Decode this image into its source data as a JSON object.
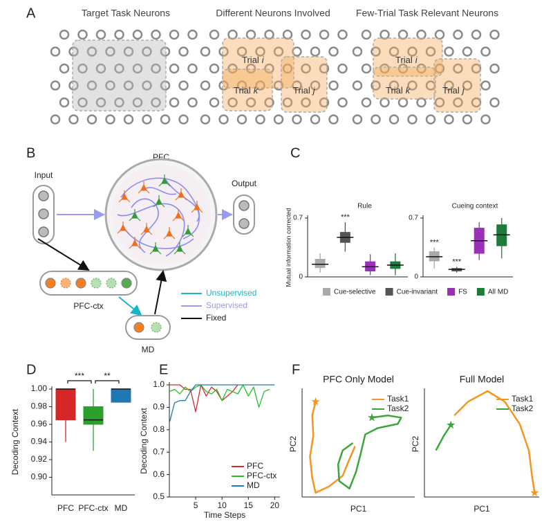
{
  "panel_labels": [
    "A",
    "B",
    "C",
    "D",
    "E",
    "F"
  ],
  "panel_a": {
    "grids": [
      {
        "title": "Target Task Neurons"
      },
      {
        "title": "Different Neurons Involved",
        "trials": [
          {
            "text": "Trial",
            "index": "i"
          },
          {
            "text": "Trial",
            "index": "k"
          },
          {
            "text": "Trial",
            "index": "j"
          }
        ]
      },
      {
        "title": "Few-Trial Task Relevant Neurons",
        "trials": [
          {
            "text": "Trial",
            "index": "i"
          },
          {
            "text": "Trial",
            "index": "k"
          },
          {
            "text": "Trial",
            "index": "j"
          }
        ]
      }
    ]
  },
  "panel_b": {
    "pfc": "PFC",
    "input": "Input",
    "output": "Output",
    "pfc_ctx": "PFC-ctx",
    "md": "MD",
    "legend": [
      "Unsupervised",
      "Supervised",
      "Fixed"
    ]
  },
  "chart_data": [
    {
      "type": "box",
      "ylabel": "Mutual information corrected",
      "ylim": [
        0,
        0.7
      ],
      "yticks": [
        0,
        0.7
      ],
      "subplots": [
        {
          "title": "Rule"
        },
        {
          "title": "Cueing context"
        }
      ],
      "series": [
        {
          "name": "Cue-selective",
          "color": "#a9a9a9",
          "boxes": [
            {
              "whislo": 0.05,
              "q1": 0.11,
              "med": 0.15,
              "q3": 0.21,
              "whishi": 0.28
            },
            {
              "whislo": 0.1,
              "q1": 0.19,
              "med": 0.24,
              "q3": 0.3,
              "whishi": 0.35,
              "annotation": "***"
            }
          ]
        },
        {
          "name": "Cue-invariant",
          "color": "#555555",
          "boxes": [
            {
              "whislo": 0.3,
              "q1": 0.41,
              "med": 0.47,
              "q3": 0.53,
              "whishi": 0.65,
              "annotation": "***"
            },
            {
              "whislo": 0.05,
              "q1": 0.07,
              "med": 0.09,
              "q3": 0.1,
              "whishi": 0.12,
              "annotation": "***"
            }
          ]
        },
        {
          "name": "FS",
          "color": "#9b30b8",
          "boxes": [
            {
              "whislo": 0.02,
              "q1": 0.07,
              "med": 0.12,
              "q3": 0.18,
              "whishi": 0.27
            },
            {
              "whislo": 0.2,
              "q1": 0.28,
              "med": 0.43,
              "q3": 0.58,
              "whishi": 0.65
            }
          ]
        },
        {
          "name": "All MD",
          "color": "#1e7b3a",
          "boxes": [
            {
              "whislo": 0.02,
              "q1": 0.1,
              "med": 0.14,
              "q3": 0.18,
              "whishi": 0.28
            },
            {
              "whislo": 0.22,
              "q1": 0.37,
              "med": 0.5,
              "q3": 0.62,
              "whishi": 0.7
            }
          ]
        }
      ]
    },
    {
      "type": "box",
      "ylabel": "Decoding Context",
      "categories": [
        "PFC",
        "PFC-ctx",
        "MD"
      ],
      "ylim": [
        0.88,
        1.0
      ],
      "yticks": [
        {
          "value": 0.9,
          "label": "0.90"
        },
        0.92,
        0.94,
        0.96,
        0.98,
        {
          "value": 1.0,
          "label": "1.00"
        }
      ],
      "boxes": [
        {
          "color": "#d62728",
          "whislo": 0.94,
          "q1": 0.965,
          "med": 1.0,
          "q3": 1.0,
          "whishi": 1.0
        },
        {
          "color": "#2ca02c",
          "whislo": 0.93,
          "q1": 0.96,
          "med": 0.965,
          "q3": 0.98,
          "whishi": 1.0
        },
        {
          "color": "#1f77b4",
          "whislo": 0.985,
          "q1": 0.985,
          "med": 1.0,
          "q3": 1.0,
          "whishi": 1.0
        }
      ],
      "significance": [
        {
          "label": "***"
        },
        {
          "label": "**"
        }
      ]
    },
    {
      "type": "line",
      "xlabel": "Time Steps",
      "ylabel": "Decoding Context",
      "x": [
        0,
        1,
        2,
        3,
        4,
        5,
        6,
        7,
        8,
        9,
        10,
        11,
        12,
        13,
        14,
        15,
        16,
        17,
        18,
        19,
        20
      ],
      "xlim": [
        0,
        21
      ],
      "ylim": [
        0.5,
        1.0
      ],
      "xticks": [
        5,
        10,
        15,
        20
      ],
      "yticks": [
        0.5,
        0.6,
        0.7,
        0.8,
        0.9,
        {
          "value": 1.0,
          "label": "1.0"
        }
      ],
      "legend": "lower right",
      "series": [
        {
          "name": "PFC",
          "color": "#d62728",
          "values": [
            1,
            1,
            1,
            0.98,
            0.98,
            0.88,
            1,
            0.95,
            0.99,
            0.97,
            0.93,
            0.95,
            0.97,
            1,
            null,
            null,
            null,
            null,
            null,
            null,
            null
          ]
        },
        {
          "name": "PFC-ctx",
          "color": "#22c022",
          "values": [
            0.97,
            0.98,
            0.96,
            0.99,
            0.97,
            0.99,
            1,
            0.97,
            0.96,
            0.98,
            0.93,
            0.98,
            0.97,
            0.96,
            1,
            0.95,
            0.99,
            0.9,
            0.97,
            0.98,
            null
          ]
        },
        {
          "name": "MD",
          "color": "#1f77b4",
          "values": [
            0.83,
            0.92,
            0.93,
            0.93,
            0.97,
            1,
            1,
            1,
            1,
            1,
            1,
            1,
            1,
            1,
            1,
            1,
            1,
            1,
            1,
            1,
            1
          ]
        }
      ]
    },
    {
      "type": "line",
      "title": "PFC Only Model",
      "xlabel": "PC1",
      "ylabel": "PC2",
      "xlim": [
        0,
        1
      ],
      "ylim": [
        0,
        1
      ],
      "legend": "upper right",
      "series": [
        {
          "name": "Task1",
          "color": "#f7941d",
          "marker": "star",
          "x": [
            0.12,
            0.09,
            0.1,
            0.07,
            0.09,
            0.12,
            0.24,
            0.36,
            0.41,
            0.47
          ],
          "values": [
            0.9,
            0.77,
            0.58,
            0.38,
            0.18,
            0.04,
            0.1,
            0.2,
            0.33,
            0.48
          ]
        },
        {
          "name": "Task2",
          "color": "#3aa63a",
          "marker": "star",
          "x": [
            0.62,
            0.76,
            0.88,
            0.85,
            0.67,
            0.56,
            0.52,
            0.48,
            0.42,
            0.33,
            0.32,
            0.36,
            0.45
          ],
          "values": [
            0.75,
            0.77,
            0.75,
            0.69,
            0.65,
            0.59,
            0.41,
            0.24,
            0.08,
            0.15,
            0.31,
            0.44,
            0.51
          ]
        }
      ]
    },
    {
      "type": "line",
      "title": "Full Model",
      "xlabel": "PC1",
      "ylabel": "PC2",
      "xlim": [
        0,
        1
      ],
      "ylim": [
        0,
        1
      ],
      "legend": "upper right",
      "series": [
        {
          "name": "Task1",
          "color": "#f7941d",
          "marker": "star",
          "x": [
            0.96,
            0.94,
            0.91,
            0.83,
            0.7,
            0.55,
            0.38,
            0.26
          ],
          "values": [
            0.04,
            0.18,
            0.44,
            0.69,
            0.9,
            1.0,
            0.9,
            0.77
          ]
        },
        {
          "name": "Task2",
          "color": "#3aa63a",
          "marker": "star",
          "x": [
            0.23,
            0.17,
            0.1
          ],
          "values": [
            0.68,
            0.58,
            0.44
          ]
        }
      ]
    }
  ]
}
